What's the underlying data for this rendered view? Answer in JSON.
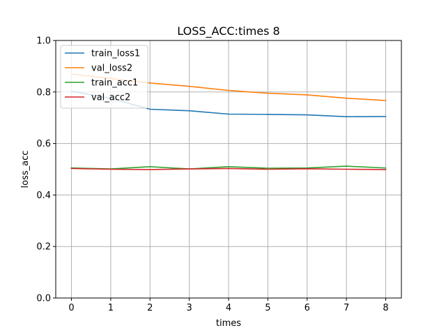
{
  "chart_data": {
    "type": "line",
    "title": "LOSS_ACC:times 8",
    "xlabel": "times",
    "ylabel": "loss_acc",
    "x": [
      0,
      1,
      2,
      3,
      4,
      5,
      6,
      7,
      8
    ],
    "xlim": [
      -0.4,
      8.4
    ],
    "ylim": [
      0.0,
      1.0
    ],
    "xticks": [
      "0",
      "1",
      "2",
      "3",
      "4",
      "5",
      "6",
      "7",
      "8"
    ],
    "yticks": [
      "0.0",
      "0.2",
      "0.4",
      "0.6",
      "0.8",
      "1.0"
    ],
    "grid": true,
    "legend_position": "top-left",
    "series": [
      {
        "name": "train_loss1",
        "color": "#1f77b4",
        "values": [
          0.803,
          0.775,
          0.733,
          0.727,
          0.714,
          0.713,
          0.711,
          0.704,
          0.705
        ]
      },
      {
        "name": "val_loss2",
        "color": "#ff7f0e",
        "values": [
          0.87,
          0.852,
          0.835,
          0.822,
          0.806,
          0.795,
          0.789,
          0.776,
          0.767
        ]
      },
      {
        "name": "train_acc1",
        "color": "#2ca02c",
        "values": [
          0.505,
          0.501,
          0.51,
          0.501,
          0.51,
          0.504,
          0.505,
          0.512,
          0.505
        ]
      },
      {
        "name": "val_acc2",
        "color": "#d62728",
        "values": [
          0.503,
          0.5,
          0.499,
          0.501,
          0.503,
          0.5,
          0.502,
          0.5,
          0.499
        ]
      }
    ]
  }
}
